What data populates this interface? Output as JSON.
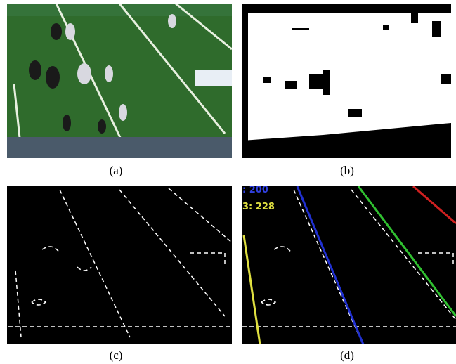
{
  "figure": {
    "panels": [
      {
        "caption": "(a)"
      },
      {
        "caption": "(b)"
      },
      {
        "caption": "(c)"
      },
      {
        "caption": "(d)"
      }
    ],
    "overlay_labels": [
      ": 200",
      "3: 228"
    ]
  }
}
